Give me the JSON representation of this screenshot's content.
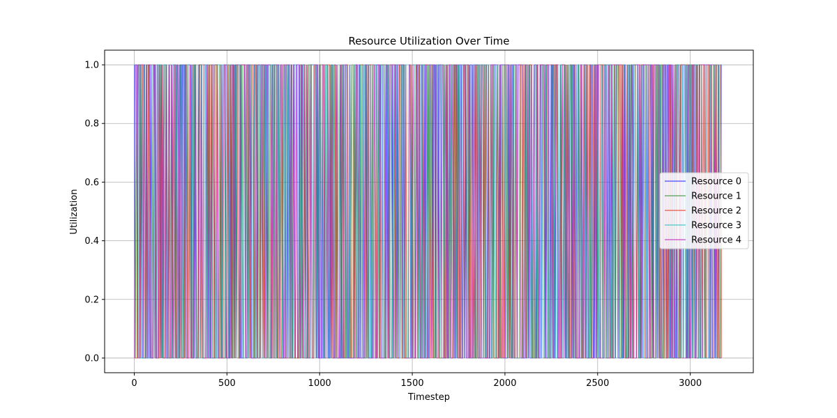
{
  "chart_data": {
    "type": "line",
    "title": "Resource Utilization Over Time",
    "xlabel": "Timestep",
    "ylabel": "Utilization",
    "xlim": [
      -160,
      3340
    ],
    "ylim": [
      -0.05,
      1.05
    ],
    "x_ticks": [
      0,
      500,
      1000,
      1500,
      2000,
      2500,
      3000
    ],
    "y_ticks": [
      0.0,
      0.2,
      0.4,
      0.6,
      0.8,
      1.0
    ],
    "x_tick_labels": [
      "0",
      "500",
      "1000",
      "1500",
      "2000",
      "2500",
      "3000"
    ],
    "y_tick_labels": [
      "0.0",
      "0.2",
      "0.4",
      "0.6",
      "0.8",
      "1.0"
    ],
    "grid": true,
    "legend_position": "center-right",
    "x_range": [
      0,
      3170
    ],
    "value_set": [
      0,
      1
    ],
    "description_of_values": "binary 0/1 utilization sampled each timestep; dense switching",
    "series": [
      {
        "name": "Resource 0",
        "color": "#1f1fff"
      },
      {
        "name": "Resource 1",
        "color": "#2e8b2e"
      },
      {
        "name": "Resource 2",
        "color": "#e8301e"
      },
      {
        "name": "Resource 3",
        "color": "#1fbfbf"
      },
      {
        "name": "Resource 4",
        "color": "#bf1fbf"
      }
    ]
  }
}
